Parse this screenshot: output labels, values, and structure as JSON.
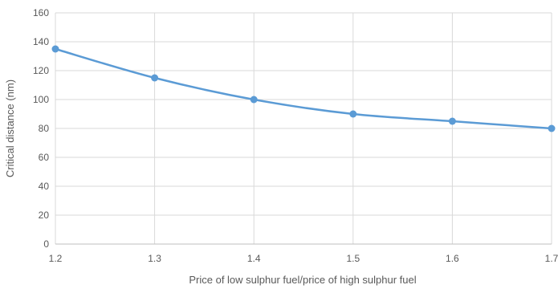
{
  "chart_data": {
    "type": "line",
    "title": "",
    "xlabel": "Price of low sulphur fuel/price of high sulphur fuel",
    "ylabel": "Critical distance (nm)",
    "xlim": [
      1.2,
      1.7
    ],
    "ylim": [
      0,
      160
    ],
    "x_ticks": [
      "1.2",
      "1.3",
      "1.4",
      "1.5",
      "1.6",
      "1.7"
    ],
    "y_ticks": [
      "0",
      "20",
      "40",
      "60",
      "80",
      "100",
      "120",
      "140",
      "160"
    ],
    "grid": true,
    "legend": "none",
    "series": [
      {
        "color": "#5b9bd5",
        "x": [
          1.2,
          1.3,
          1.4,
          1.5,
          1.6,
          1.7
        ],
        "y": [
          135,
          115,
          100,
          90,
          85,
          80
        ]
      }
    ]
  }
}
